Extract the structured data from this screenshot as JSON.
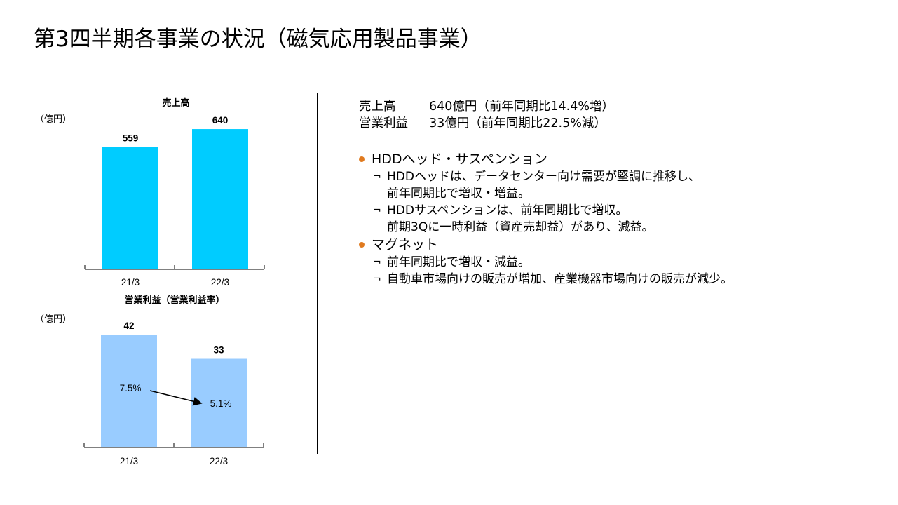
{
  "title": "第3四半期各事業の状況（磁気応用製品事業）",
  "colors": {
    "sales_bar": "#00CCFF",
    "profit_bar": "#99CCFF",
    "bullet": "#E07A1F",
    "text": "#000000"
  },
  "chart_data": [
    {
      "type": "bar",
      "title": "売上高",
      "unit_label": "（億円）",
      "categories": [
        "21/3",
        "22/3"
      ],
      "values": [
        559,
        640
      ],
      "ylim": [
        0,
        700
      ],
      "grid": false,
      "color": "#00CCFF"
    },
    {
      "type": "bar",
      "title": "営業利益（営業利益率）",
      "unit_label": "（億円）",
      "categories": [
        "21/3",
        "22/3"
      ],
      "values": [
        42,
        33
      ],
      "margins": [
        "7.5%",
        "5.1%"
      ],
      "ylim": [
        0,
        50
      ],
      "grid": false,
      "color": "#99CCFF"
    }
  ],
  "summary": [
    {
      "label": "売上高",
      "value": "640億円（前年同期比14.4%増）"
    },
    {
      "label": "営業利益",
      "value": "33億円（前年同期比22.5%減）"
    }
  ],
  "bullets": [
    {
      "heading": "HDDヘッド・サスペンション",
      "items": [
        {
          "mark": "¬",
          "lines": [
            "HDDヘッドは、データセンター向け需要が堅調に推移し、",
            "前年同期比で増収・増益。"
          ]
        },
        {
          "mark": "¬",
          "lines": [
            "HDDサスペンションは、前年同期比で増収。",
            "前期3Qに一時利益（資産売却益）があり、減益。"
          ]
        }
      ]
    },
    {
      "heading": "マグネット",
      "items": [
        {
          "mark": "¬",
          "lines": [
            "前年同期比で増収・減益。"
          ]
        },
        {
          "mark": "¬",
          "lines": [
            "自動車市場向けの販売が増加、産業機器市場向けの販売が減少。"
          ]
        }
      ]
    }
  ]
}
